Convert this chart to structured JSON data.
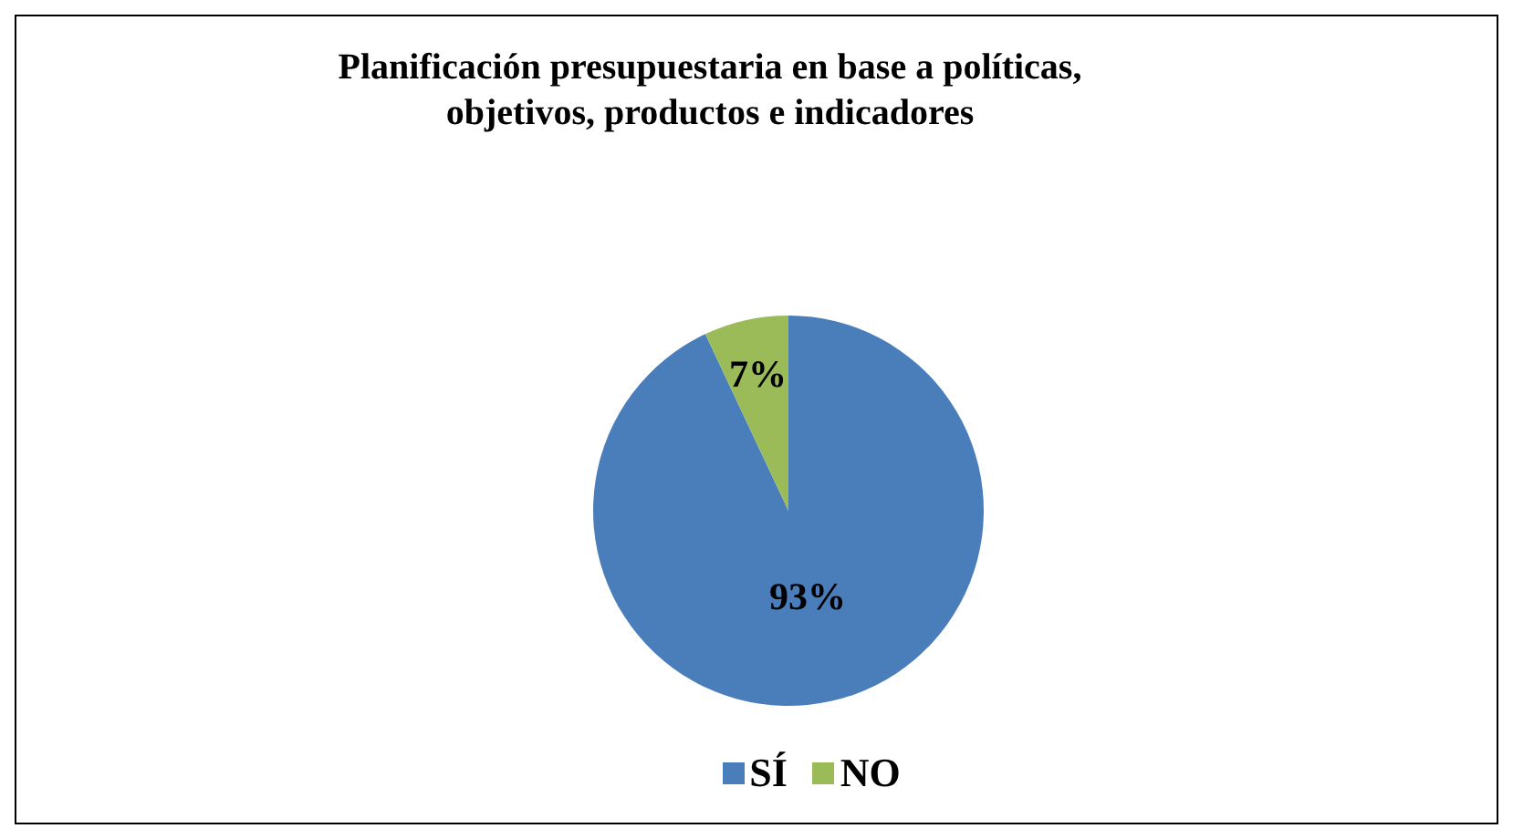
{
  "chart_data": {
    "type": "pie",
    "title": "Planificación presupuestaria en base a políticas,\nobjetivos, productos e indicadores",
    "categories": [
      "SÍ",
      "NO"
    ],
    "values": [
      93,
      7
    ],
    "value_labels": [
      "93%",
      "7%"
    ],
    "colors": [
      "#4a7ebb",
      "#9bbb59"
    ],
    "legend": "bottom"
  }
}
